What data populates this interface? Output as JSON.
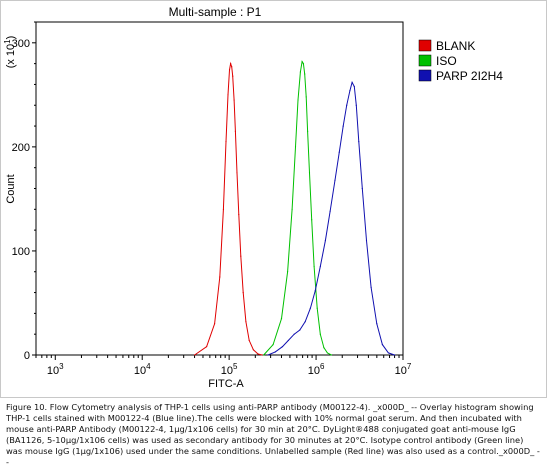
{
  "chart_data": {
    "type": "line",
    "title": "Multi-sample : P1",
    "xlabel": "FITC-A",
    "ylabel": "Count",
    "y_multiplier": "(x 10",
    "y_multiplier_exp": "1",
    "x_scale": "log",
    "xlim": [
      600,
      10000000
    ],
    "ylim": [
      0,
      320
    ],
    "x_ticks": [
      {
        "value": 1000,
        "base": "10",
        "exp": "3"
      },
      {
        "value": 10000,
        "base": "10",
        "exp": "4"
      },
      {
        "value": 100000,
        "base": "10",
        "exp": "5"
      },
      {
        "value": 1000000,
        "base": "10",
        "exp": "6"
      },
      {
        "value": 10000000,
        "base": "10",
        "exp": "7"
      }
    ],
    "y_ticks": [
      0,
      100,
      200,
      300
    ],
    "legend_position": "right",
    "series": [
      {
        "name": "BLANK",
        "color": "#e00000",
        "x": [
          40000,
          55000,
          68000,
          78000,
          86000,
          92000,
          97000,
          101000,
          104000,
          107000,
          110000,
          114000,
          118000,
          123000,
          129000,
          136000,
          145000,
          156000,
          170000,
          190000,
          215000,
          240000
        ],
        "y": [
          0,
          8,
          30,
          75,
          140,
          205,
          250,
          274,
          280,
          277,
          268,
          245,
          215,
          175,
          135,
          95,
          60,
          32,
          14,
          5,
          1,
          0
        ]
      },
      {
        "name": "ISO",
        "color": "#00c000",
        "x": [
          250000,
          320000,
          400000,
          470000,
          530000,
          580000,
          620000,
          660000,
          690000,
          715000,
          740000,
          770000,
          800000,
          840000,
          890000,
          950000,
          1030000,
          1120000,
          1230000,
          1350000,
          1500000
        ],
        "y": [
          0,
          10,
          35,
          80,
          140,
          200,
          245,
          272,
          282,
          280,
          270,
          248,
          215,
          175,
          130,
          85,
          45,
          20,
          7,
          2,
          0
        ]
      },
      {
        "name": "PARP 2I2H4",
        "color": "#1010b0",
        "x": [
          280000,
          340000,
          410000,
          480000,
          560000,
          650000,
          750000,
          860000,
          980000,
          1120000,
          1280000,
          1450000,
          1650000,
          1850000,
          2050000,
          2250000,
          2450000,
          2600000,
          2750000,
          2900000,
          3100000,
          3400000,
          3800000,
          4300000,
          5000000,
          5800000,
          6800000,
          8000000
        ],
        "y": [
          0,
          3,
          8,
          14,
          20,
          24,
          32,
          45,
          62,
          85,
          110,
          138,
          168,
          195,
          220,
          240,
          254,
          262,
          258,
          240,
          205,
          160,
          110,
          65,
          30,
          10,
          2,
          0
        ]
      }
    ]
  },
  "caption": "Figure 10. Flow Cytometry analysis of THP-1 cells using anti-PARP antibody (M00122-4). _x000D_ -- Overlay histogram showing THP-1 cells stained with M00122-4 (Blue line).The cells were blocked with 10% normal goat serum. And then incubated with mouse anti-PARP Antibody (M00122-4, 1μg/1x106 cells) for 30 min at 20°C. DyLight®488 conjugated goat anti-mouse IgG (BA1126, 5-10μg/1x106 cells) was used as secondary antibody for 30 minutes at 20°C. Isotype control antibody (Green line) was mouse IgG (1μg/1x106) used under the same conditions. Unlabelled sample (Red line) was also used as a control._x000D_ --"
}
